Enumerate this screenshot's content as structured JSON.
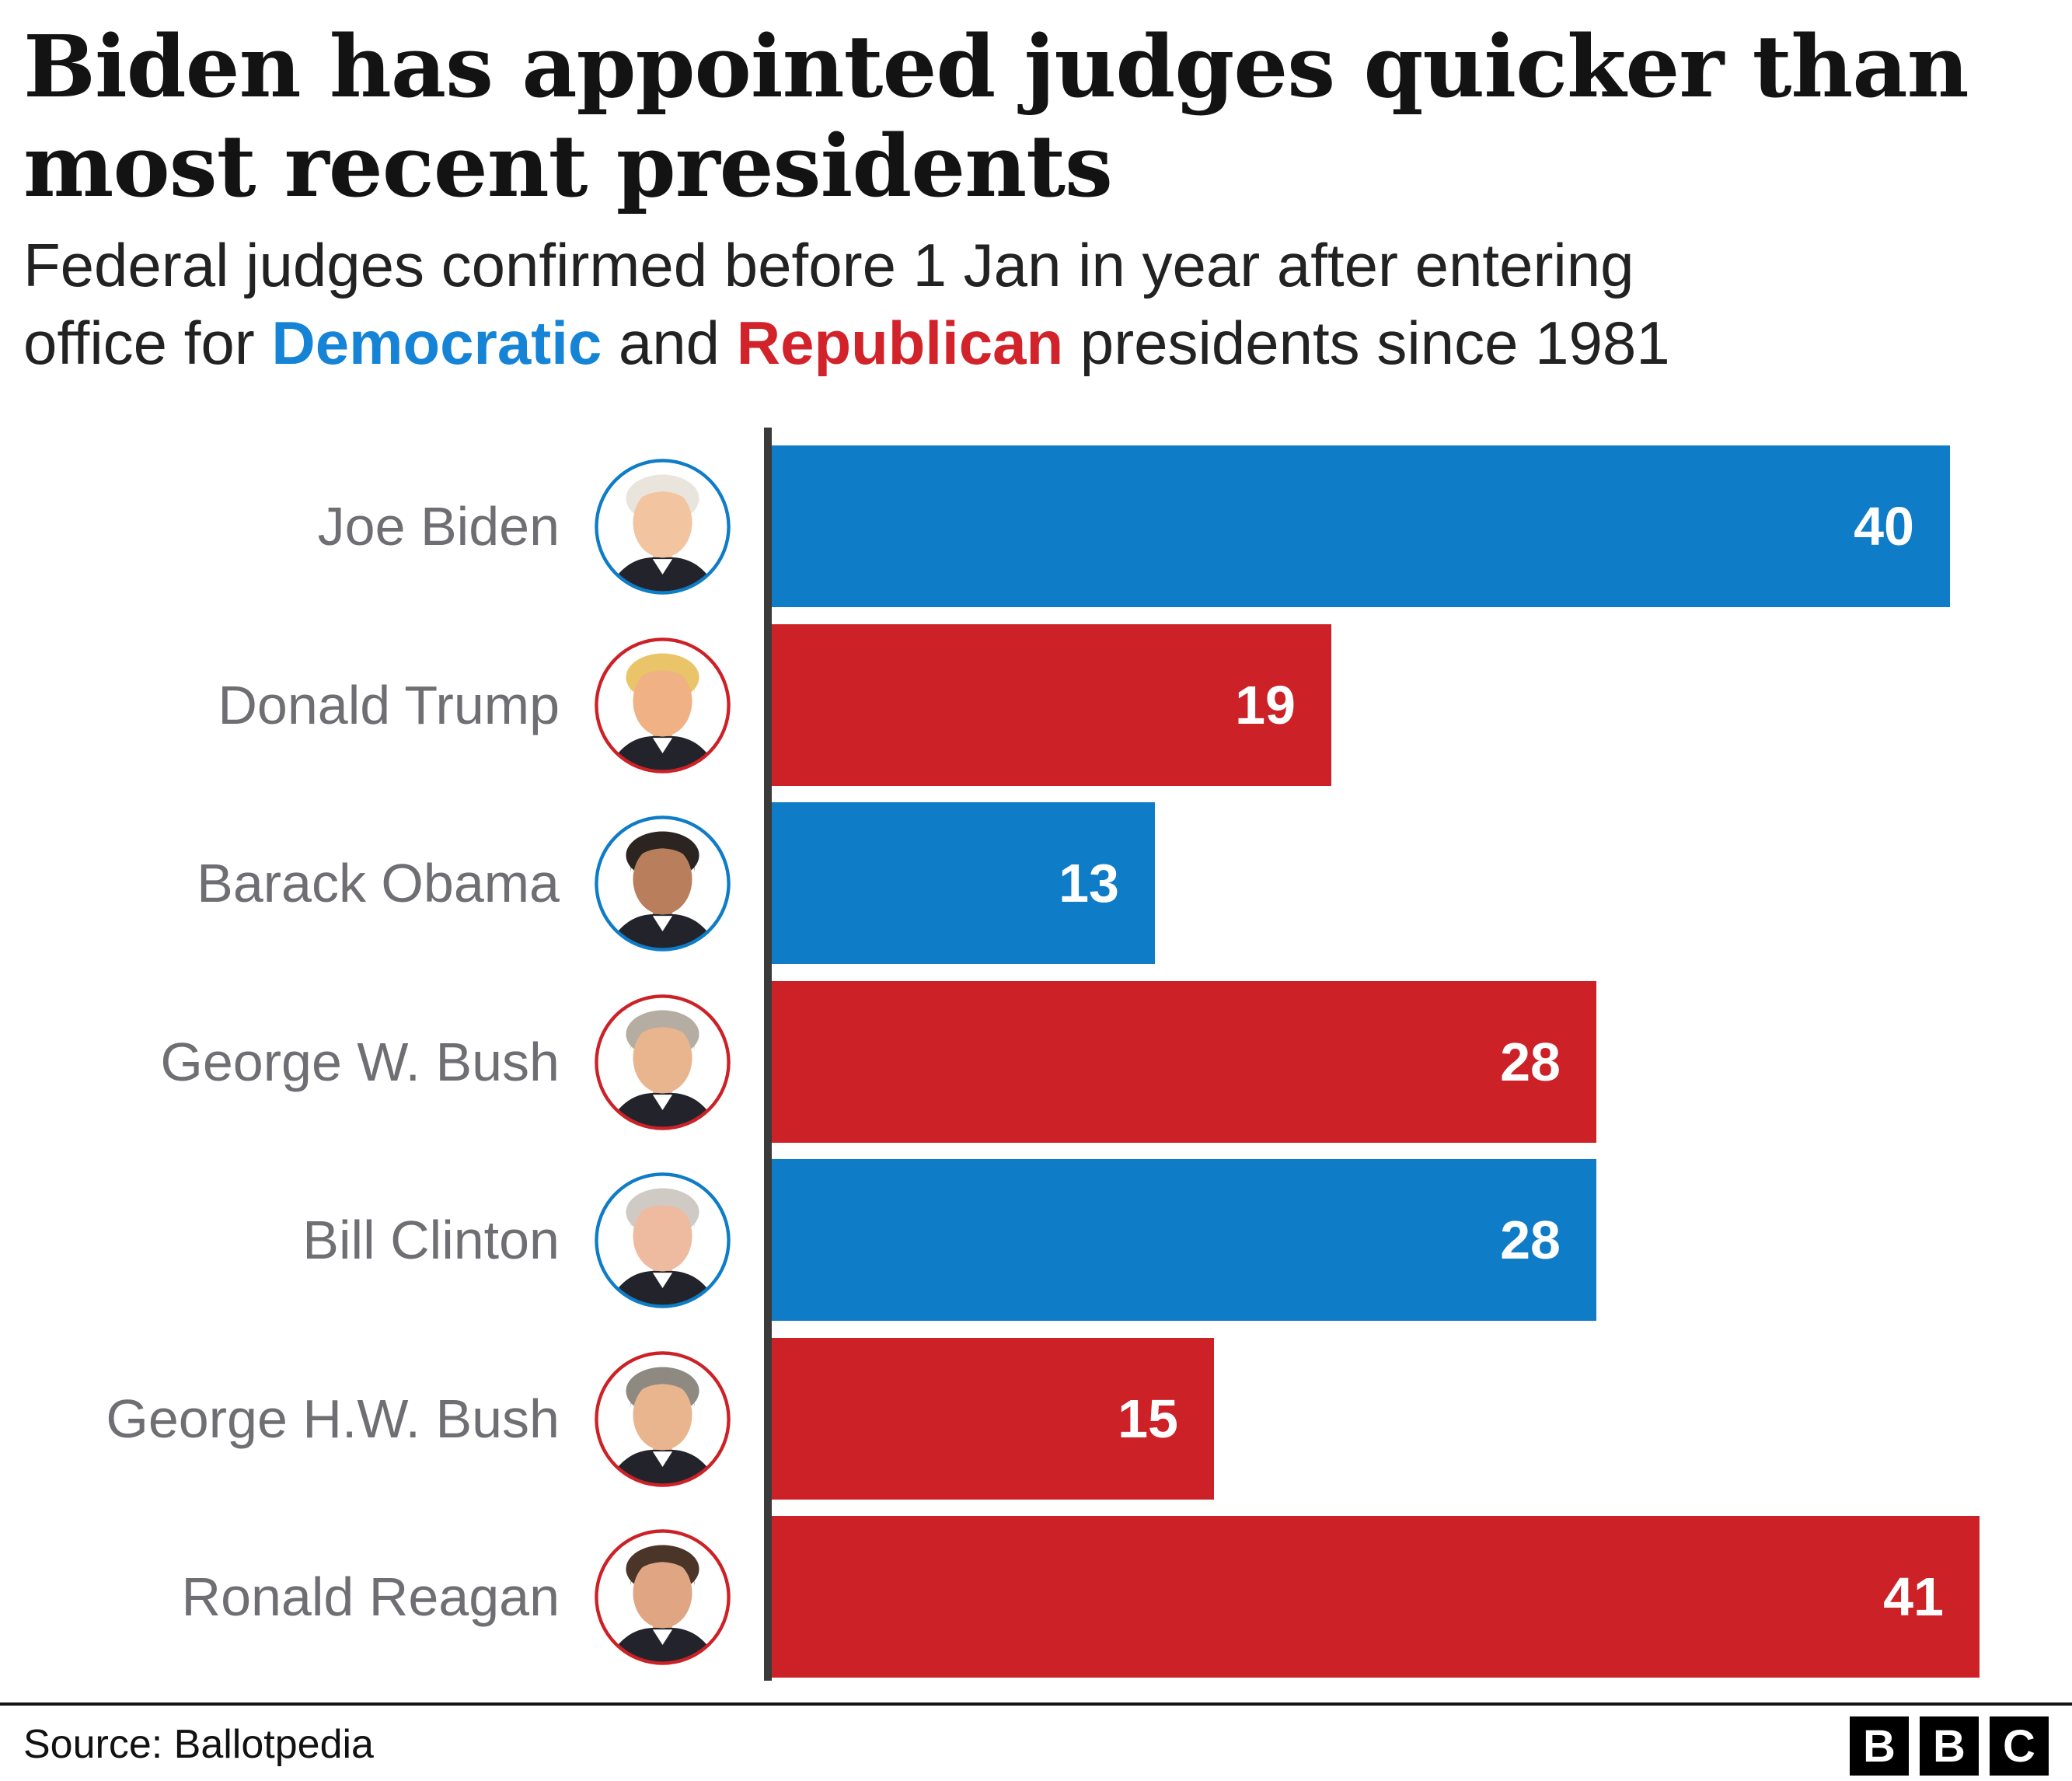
{
  "title": {
    "full": "Biden has appointed judges quicker than most recent presidents",
    "line1": "Biden has appointed judges quicker than",
    "line2": "most recent presidents"
  },
  "subtitle": {
    "line1": "Federal judges confirmed before 1 Jan in year after entering",
    "line2_prefix": "office for ",
    "line2_democratic": "Democratic",
    "line2_middle": " and ",
    "line2_republican": "Republican",
    "line2_suffix": " presidents since 1981"
  },
  "chart_data": {
    "type": "bar",
    "orientation": "horizontal",
    "title": "Biden has appointed judges quicker than most recent presidents",
    "subtitle": "Federal judges confirmed before 1 Jan in year after entering office for Democratic and Republican presidents since 1981",
    "categories": [
      "Joe Biden",
      "Donald Trump",
      "Barack Obama",
      "George W. Bush",
      "Bill Clinton",
      "George H.W. Bush",
      "Ronald Reagan"
    ],
    "values": [
      40,
      19,
      13,
      28,
      28,
      15,
      41
    ],
    "parties": [
      "Democratic",
      "Republican",
      "Democratic",
      "Republican",
      "Democratic",
      "Republican",
      "Republican"
    ],
    "value_labels": [
      "40",
      "19",
      "13",
      "28",
      "28",
      "15",
      "41"
    ],
    "xlim": [
      0,
      44
    ],
    "grid": false,
    "legend": "inline in subtitle (Democratic = blue, Republican = red)",
    "data_label_position": "inside-end"
  },
  "presidents": [
    {
      "name": "Joe Biden",
      "value": 40,
      "party": "Democratic",
      "hair_color": "#e9e5dd",
      "skin_color": "#f2c4a0"
    },
    {
      "name": "Donald Trump",
      "value": 19,
      "party": "Republican",
      "hair_color": "#e9c469",
      "skin_color": "#f0b184"
    },
    {
      "name": "Barack Obama",
      "value": 13,
      "party": "Democratic",
      "hair_color": "#2b2420",
      "skin_color": "#b97f5c"
    },
    {
      "name": "George W. Bush",
      "value": 28,
      "party": "Republican",
      "hair_color": "#b5ada1",
      "skin_color": "#e9b58e"
    },
    {
      "name": "Bill Clinton",
      "value": 28,
      "party": "Democratic",
      "hair_color": "#cfcbc4",
      "skin_color": "#eebaa0"
    },
    {
      "name": "George H.W. Bush",
      "value": 15,
      "party": "Republican",
      "hair_color": "#8e8a82",
      "skin_color": "#e9b58e"
    },
    {
      "name": "Ronald Reagan",
      "value": 41,
      "party": "Republican",
      "hair_color": "#4a3528",
      "skin_color": "#e0a583"
    }
  ],
  "colors": {
    "democrat_blue": "#0e7cc6",
    "republican_red": "#cc2127",
    "subtitle_blue": "#1583d6",
    "subtitle_red": "#d2232a",
    "label_gray": "#6e6e73",
    "axis_dark": "#3a3a3a",
    "title_black": "#131313",
    "suit_dark": "#23242b"
  },
  "footer": {
    "source": "Source: Ballotpedia",
    "logo_letters": [
      "B",
      "B",
      "C"
    ]
  }
}
